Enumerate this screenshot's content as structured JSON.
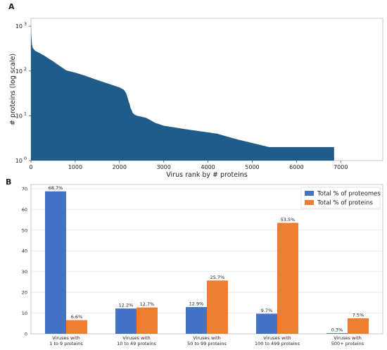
{
  "chart_data": [
    {
      "panel": "A",
      "type": "area",
      "xlabel": "Virus rank by # proteins",
      "ylabel": "# proteins (log scale)",
      "y_scale": "log",
      "xlim": [
        0,
        7950
      ],
      "ylim": [
        1,
        1500
      ],
      "x_ticks": [
        "0",
        "1000",
        "2000",
        "3000",
        "4000",
        "5000",
        "6000",
        "7000"
      ],
      "y_ticks": [
        {
          "base": "10",
          "exp": "0"
        },
        {
          "base": "10",
          "exp": "1"
        },
        {
          "base": "10",
          "exp": "2"
        },
        {
          "base": "10",
          "exp": "3"
        }
      ],
      "color": "#1f5c8a",
      "x": [
        0,
        5,
        20,
        40,
        70,
        100,
        200,
        300,
        400,
        500,
        600,
        700,
        800,
        1000,
        1200,
        1400,
        1600,
        1800,
        2000,
        2100,
        2150,
        2180,
        2200,
        2230,
        2250,
        2280,
        2300,
        2350,
        2400,
        2500,
        2600,
        2700,
        2800,
        3000,
        3500,
        4200,
        4650,
        5380,
        6850,
        6850
      ],
      "y": [
        1300,
        700,
        400,
        330,
        300,
        280,
        250,
        220,
        190,
        165,
        140,
        120,
        103,
        92,
        80,
        68,
        58,
        50,
        43,
        38,
        32,
        26,
        22,
        18,
        15,
        13,
        11.5,
        10.5,
        10,
        9.5,
        9,
        8,
        7,
        6,
        5,
        4,
        3,
        2,
        2,
        1
      ]
    },
    {
      "panel": "B",
      "type": "bar",
      "categories": [
        [
          "Viruses with",
          "1 to 9 proteins"
        ],
        [
          "Viruses with",
          "10 to 49 proteins"
        ],
        [
          "Viruses with",
          "50 to 99 proteins"
        ],
        [
          "Viruses with",
          "100 to 499 proteins"
        ],
        [
          "Viruses with",
          "500+ proteins"
        ]
      ],
      "ylim": [
        0,
        72
      ],
      "y_ticks": [
        "0",
        "10",
        "20",
        "30",
        "40",
        "50",
        "60",
        "70"
      ],
      "legend_placement": "top-right",
      "grid": "horizontal",
      "series": [
        {
          "name": "Total % of proteomes",
          "color": "#4472c4",
          "values": [
            68.7,
            12.2,
            12.9,
            9.7,
            0.3
          ],
          "labels": [
            "68.7%",
            "12.2%",
            "12.9%",
            "9.7%",
            "0.3%"
          ]
        },
        {
          "name": "Total % of proteins",
          "color": "#ed7d31",
          "values": [
            6.6,
            12.7,
            25.7,
            53.5,
            7.5
          ],
          "labels": [
            "6.6%",
            "12.7%",
            "25.7%",
            "53.5%",
            "7.5%"
          ]
        }
      ]
    }
  ]
}
